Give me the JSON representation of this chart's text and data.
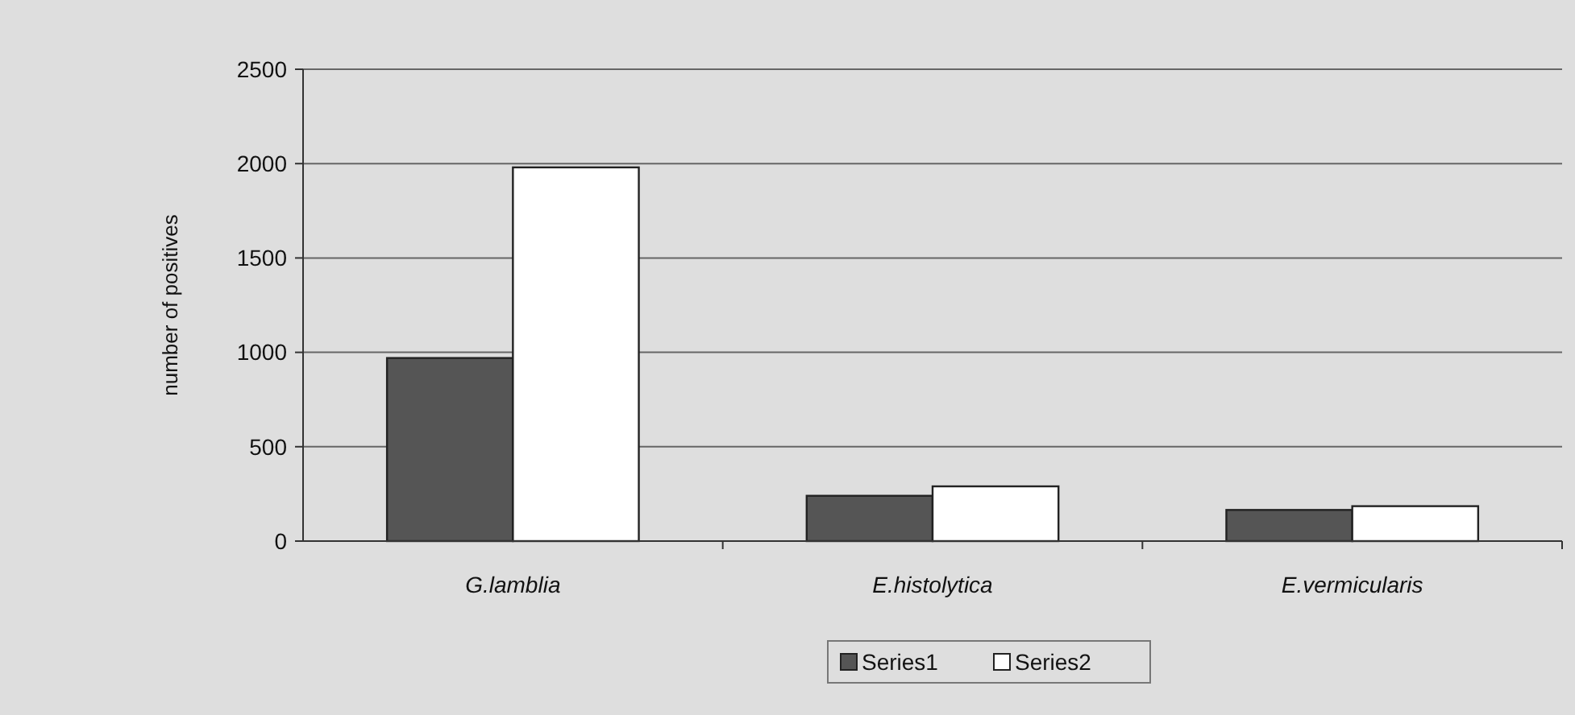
{
  "chart_data": {
    "type": "bar",
    "ylabel": "number of positives",
    "categories": [
      "G.lamblia",
      "E.histolytica",
      "E.vermicularis"
    ],
    "series": [
      {
        "name": "Series1",
        "color": "#555555",
        "values": [
          970,
          240,
          165
        ]
      },
      {
        "name": "Series2",
        "color": "#ffffff",
        "values": [
          1980,
          290,
          185
        ]
      }
    ],
    "ylim": [
      0,
      2500
    ],
    "yticks": [
      0,
      500,
      1000,
      1500,
      2000,
      2500
    ],
    "grid": "y",
    "legend": "bottom"
  }
}
